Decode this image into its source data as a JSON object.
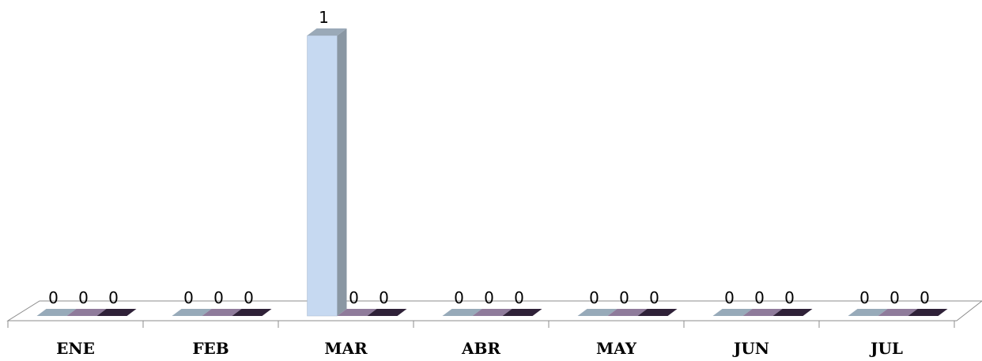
{
  "chart_data": {
    "type": "bar",
    "categories": [
      "ENE",
      "FEB",
      "MAR",
      "ABR",
      "MAY",
      "JUN",
      "JUL"
    ],
    "series": [
      {
        "values": [
          0,
          0,
          1,
          0,
          0,
          0,
          0
        ],
        "color": "#c6d9f1"
      },
      {
        "values": [
          0,
          0,
          0,
          0,
          0,
          0,
          0
        ],
        "color": "#8f7b9b"
      },
      {
        "values": [
          0,
          0,
          0,
          0,
          0,
          0,
          0
        ],
        "color": "#2f2138"
      }
    ],
    "data_labels": true,
    "ylim": [
      0,
      1
    ],
    "grid": false,
    "legend": "none",
    "style": "3d-clustered-column"
  }
}
